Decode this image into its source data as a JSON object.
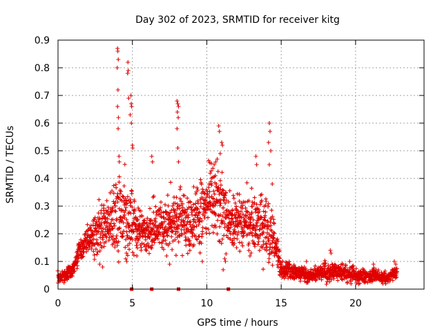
{
  "chart_data": {
    "type": "scatter",
    "title": "Day 302 of 2023, SRMTID for receiver kitg",
    "xlabel": "GPS time / hours",
    "ylabel": "SRMTID / TECUs",
    "xlim": [
      0,
      24.6
    ],
    "ylim": [
      0,
      0.9
    ],
    "xticks": [
      0,
      5,
      10,
      15,
      20
    ],
    "yticks": [
      0,
      0.1,
      0.2,
      0.3,
      0.4,
      0.5,
      0.6,
      0.7,
      0.8,
      0.9
    ],
    "xtick_labels": [
      "0",
      "5",
      "10",
      "15",
      "20"
    ],
    "ytick_labels": [
      "0",
      "0.1",
      "0.2",
      "0.3",
      "0.4",
      "0.5",
      "0.6",
      "0.7",
      "0.8",
      "0.9"
    ],
    "grid": true,
    "marker": "+",
    "color": "#e00000",
    "envelope": [
      {
        "x": 0.0,
        "y": 0.04,
        "spread": 0.015
      },
      {
        "x": 0.5,
        "y": 0.05,
        "spread": 0.02
      },
      {
        "x": 1.0,
        "y": 0.07,
        "spread": 0.03
      },
      {
        "x": 1.5,
        "y": 0.14,
        "spread": 0.04
      },
      {
        "x": 2.0,
        "y": 0.18,
        "spread": 0.05
      },
      {
        "x": 2.5,
        "y": 0.2,
        "spread": 0.08
      },
      {
        "x": 3.0,
        "y": 0.22,
        "spread": 0.09
      },
      {
        "x": 3.5,
        "y": 0.24,
        "spread": 0.1
      },
      {
        "x": 4.0,
        "y": 0.28,
        "spread": 0.15
      },
      {
        "x": 4.5,
        "y": 0.26,
        "spread": 0.14
      },
      {
        "x": 5.0,
        "y": 0.24,
        "spread": 0.12
      },
      {
        "x": 5.5,
        "y": 0.2,
        "spread": 0.08
      },
      {
        "x": 6.0,
        "y": 0.2,
        "spread": 0.07
      },
      {
        "x": 6.5,
        "y": 0.22,
        "spread": 0.09
      },
      {
        "x": 7.0,
        "y": 0.22,
        "spread": 0.09
      },
      {
        "x": 7.5,
        "y": 0.24,
        "spread": 0.1
      },
      {
        "x": 8.0,
        "y": 0.26,
        "spread": 0.11
      },
      {
        "x": 8.5,
        "y": 0.24,
        "spread": 0.11
      },
      {
        "x": 9.0,
        "y": 0.24,
        "spread": 0.11
      },
      {
        "x": 9.5,
        "y": 0.27,
        "spread": 0.12
      },
      {
        "x": 10.0,
        "y": 0.29,
        "spread": 0.13
      },
      {
        "x": 10.5,
        "y": 0.32,
        "spread": 0.13
      },
      {
        "x": 11.0,
        "y": 0.3,
        "spread": 0.12
      },
      {
        "x": 11.5,
        "y": 0.24,
        "spread": 0.1
      },
      {
        "x": 12.0,
        "y": 0.25,
        "spread": 0.1
      },
      {
        "x": 12.5,
        "y": 0.24,
        "spread": 0.1
      },
      {
        "x": 13.0,
        "y": 0.24,
        "spread": 0.1
      },
      {
        "x": 13.5,
        "y": 0.24,
        "spread": 0.1
      },
      {
        "x": 14.0,
        "y": 0.22,
        "spread": 0.1
      },
      {
        "x": 14.5,
        "y": 0.18,
        "spread": 0.08
      },
      {
        "x": 15.0,
        "y": 0.07,
        "spread": 0.03
      },
      {
        "x": 16.0,
        "y": 0.06,
        "spread": 0.025
      },
      {
        "x": 17.0,
        "y": 0.05,
        "spread": 0.025
      },
      {
        "x": 18.0,
        "y": 0.06,
        "spread": 0.03
      },
      {
        "x": 19.0,
        "y": 0.06,
        "spread": 0.03
      },
      {
        "x": 20.0,
        "y": 0.05,
        "spread": 0.025
      },
      {
        "x": 21.0,
        "y": 0.05,
        "spread": 0.025
      },
      {
        "x": 22.0,
        "y": 0.04,
        "spread": 0.02
      },
      {
        "x": 22.8,
        "y": 0.06,
        "spread": 0.02
      }
    ],
    "spikes": [
      {
        "x": 4.0,
        "y": 0.87
      },
      {
        "x": 4.02,
        "y": 0.86
      },
      {
        "x": 4.05,
        "y": 0.83
      },
      {
        "x": 3.98,
        "y": 0.8
      },
      {
        "x": 4.03,
        "y": 0.72
      },
      {
        "x": 4.0,
        "y": 0.66
      },
      {
        "x": 4.06,
        "y": 0.62
      },
      {
        "x": 4.04,
        "y": 0.58
      },
      {
        "x": 4.1,
        "y": 0.48
      },
      {
        "x": 4.12,
        "y": 0.46
      },
      {
        "x": 4.7,
        "y": 0.82
      },
      {
        "x": 4.72,
        "y": 0.79
      },
      {
        "x": 4.68,
        "y": 0.78
      },
      {
        "x": 4.75,
        "y": 0.69
      },
      {
        "x": 4.9,
        "y": 0.7
      },
      {
        "x": 4.92,
        "y": 0.67
      },
      {
        "x": 4.95,
        "y": 0.66
      },
      {
        "x": 4.85,
        "y": 0.63
      },
      {
        "x": 4.93,
        "y": 0.6
      },
      {
        "x": 5.0,
        "y": 0.52
      },
      {
        "x": 5.02,
        "y": 0.51
      },
      {
        "x": 6.3,
        "y": 0.48
      },
      {
        "x": 6.35,
        "y": 0.46
      },
      {
        "x": 8.0,
        "y": 0.68
      },
      {
        "x": 8.05,
        "y": 0.67
      },
      {
        "x": 8.1,
        "y": 0.66
      },
      {
        "x": 8.02,
        "y": 0.64
      },
      {
        "x": 8.08,
        "y": 0.62
      },
      {
        "x": 8.0,
        "y": 0.58
      },
      {
        "x": 8.05,
        "y": 0.51
      },
      {
        "x": 8.1,
        "y": 0.46
      },
      {
        "x": 10.8,
        "y": 0.59
      },
      {
        "x": 10.85,
        "y": 0.57
      },
      {
        "x": 11.0,
        "y": 0.53
      },
      {
        "x": 11.05,
        "y": 0.52
      },
      {
        "x": 10.9,
        "y": 0.49
      },
      {
        "x": 10.7,
        "y": 0.47
      },
      {
        "x": 10.6,
        "y": 0.46
      },
      {
        "x": 10.5,
        "y": 0.45
      },
      {
        "x": 13.3,
        "y": 0.48
      },
      {
        "x": 13.35,
        "y": 0.45
      },
      {
        "x": 14.2,
        "y": 0.6
      },
      {
        "x": 14.25,
        "y": 0.57
      },
      {
        "x": 14.15,
        "y": 0.53
      },
      {
        "x": 14.3,
        "y": 0.5
      },
      {
        "x": 14.2,
        "y": 0.45
      },
      {
        "x": 14.4,
        "y": 0.38
      },
      {
        "x": 4.6,
        "y": 0.13
      },
      {
        "x": 4.62,
        "y": 0.1
      },
      {
        "x": 5.3,
        "y": 0.12
      },
      {
        "x": 7.3,
        "y": 0.12
      },
      {
        "x": 7.5,
        "y": 0.09
      },
      {
        "x": 9.7,
        "y": 0.1
      },
      {
        "x": 11.1,
        "y": 0.07
      },
      {
        "x": 11.2,
        "y": 0.11
      },
      {
        "x": 11.25,
        "y": 0.1
      },
      {
        "x": 12.9,
        "y": 0.12
      },
      {
        "x": 3.0,
        "y": 0.08
      },
      {
        "x": 2.8,
        "y": 0.09
      },
      {
        "x": 18.3,
        "y": 0.14
      },
      {
        "x": 18.35,
        "y": 0.13
      },
      {
        "x": 16.7,
        "y": 0.1
      },
      {
        "x": 19.6,
        "y": 0.1
      },
      {
        "x": 22.6,
        "y": 0.1
      },
      {
        "x": 22.7,
        "y": 0.09
      },
      {
        "x": 21.2,
        "y": 0.09
      }
    ],
    "zero_markers": [
      {
        "x": 4.95,
        "y": 0.0
      },
      {
        "x": 6.3,
        "y": 0.0
      },
      {
        "x": 8.1,
        "y": 0.0
      },
      {
        "x": 11.45,
        "y": 0.0
      }
    ]
  }
}
